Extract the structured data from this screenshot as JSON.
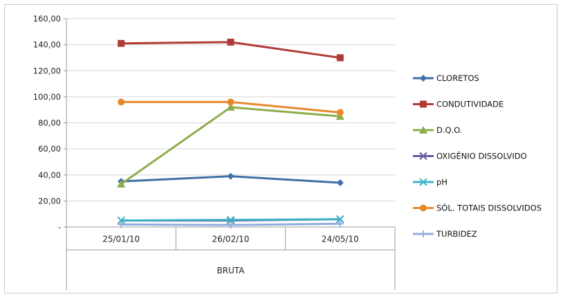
{
  "chart_data": {
    "type": "line",
    "title": "",
    "xlabel": "",
    "ylabel": "",
    "group_label": "BRUTA",
    "categories": [
      "25/01/10",
      "26/02/10",
      "24/05/10"
    ],
    "ylim": [
      0,
      160
    ],
    "yticks": [
      "-",
      "20,00",
      "40,00",
      "60,00",
      "80,00",
      "100,00",
      "120,00",
      "140,00",
      "160,00"
    ],
    "grid": true,
    "legend_position": "right",
    "series": [
      {
        "name": "CLORETOS",
        "values": [
          35,
          39,
          34
        ],
        "color": "#3f6fa8",
        "marker": "diamond"
      },
      {
        "name": "CONDUTIVIDADE",
        "values": [
          141,
          142,
          130
        ],
        "color": "#b03a36",
        "marker": "square"
      },
      {
        "name": "D.Q.O.",
        "values": [
          33,
          92,
          85
        ],
        "color": "#8cad4a",
        "marker": "triangle"
      },
      {
        "name": "OXIGÊNIO DISSOLVIDO",
        "values": [
          5,
          5,
          6
        ],
        "color": "#6a5aa0",
        "marker": "x"
      },
      {
        "name": "pH",
        "values": [
          5,
          5.5,
          6
        ],
        "color": "#3fb3c8",
        "marker": "x"
      },
      {
        "name": "SÓL. TOTAIS DISSOLVIDOS",
        "values": [
          96,
          96,
          88
        ],
        "color": "#e8892f",
        "marker": "circle"
      },
      {
        "name": "TURBIDEZ",
        "values": [
          2,
          1.5,
          2.5
        ],
        "color": "#8eaede",
        "marker": "plus"
      }
    ]
  }
}
